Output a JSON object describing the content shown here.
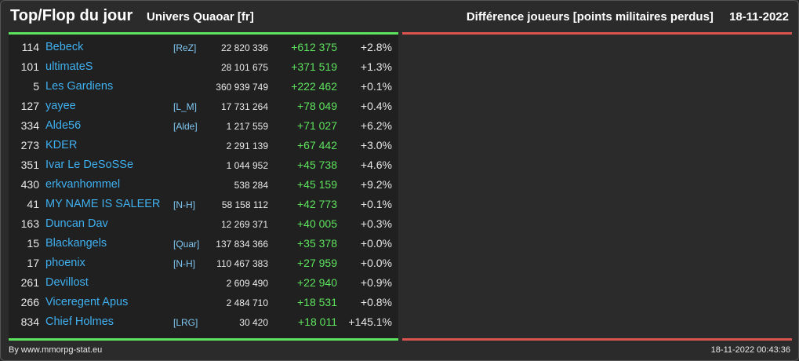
{
  "header": {
    "title": "Top/Flop du jour",
    "universe": "Univers Quaoar [fr]",
    "metric": "Différence joueurs [points militaires perdus]",
    "date": "18-11-2022"
  },
  "rows": [
    {
      "rank": "114",
      "name": "Bebeck",
      "tag": "[ReZ]",
      "points": "22 820 336",
      "diff": "+612 375",
      "pct": "+2.8%"
    },
    {
      "rank": "101",
      "name": "ultimateS",
      "tag": "",
      "points": "28 101 675",
      "diff": "+371 519",
      "pct": "+1.3%"
    },
    {
      "rank": "5",
      "name": "Les Gardiens",
      "tag": "",
      "points": "360 939 749",
      "diff": "+222 462",
      "pct": "+0.1%"
    },
    {
      "rank": "127",
      "name": "yayee",
      "tag": "[L_M]",
      "points": "17 731 264",
      "diff": "+78 049",
      "pct": "+0.4%"
    },
    {
      "rank": "334",
      "name": "Alde56",
      "tag": "[Alde]",
      "points": "1 217 559",
      "diff": "+71 027",
      "pct": "+6.2%"
    },
    {
      "rank": "273",
      "name": "KDER",
      "tag": "",
      "points": "2 291 139",
      "diff": "+67 442",
      "pct": "+3.0%"
    },
    {
      "rank": "351",
      "name": "Ivar Le DeSoSSe",
      "tag": "",
      "points": "1 044 952",
      "diff": "+45 738",
      "pct": "+4.6%"
    },
    {
      "rank": "430",
      "name": "erkvanhommel",
      "tag": "",
      "points": "538 284",
      "diff": "+45 159",
      "pct": "+9.2%"
    },
    {
      "rank": "41",
      "name": "MY NAME IS SALEER",
      "tag": "[N-H]",
      "points": "58 158 112",
      "diff": "+42 773",
      "pct": "+0.1%"
    },
    {
      "rank": "163",
      "name": "Duncan Dav",
      "tag": "",
      "points": "12 269 371",
      "diff": "+40 005",
      "pct": "+0.3%"
    },
    {
      "rank": "15",
      "name": "Blackangels",
      "tag": "[Quar]",
      "points": "137 834 366",
      "diff": "+35 378",
      "pct": "+0.0%"
    },
    {
      "rank": "17",
      "name": "phoenix",
      "tag": "[N-H]",
      "points": "110 467 383",
      "diff": "+27 959",
      "pct": "+0.0%"
    },
    {
      "rank": "261",
      "name": "Devillost",
      "tag": "",
      "points": "2 609 490",
      "diff": "+22 940",
      "pct": "+0.9%"
    },
    {
      "rank": "266",
      "name": "Viceregent Apus",
      "tag": "",
      "points": "2 484 710",
      "diff": "+18 531",
      "pct": "+0.8%"
    },
    {
      "rank": "834",
      "name": "Chief Holmes",
      "tag": "[LRG]",
      "points": "30 420",
      "diff": "+18 011",
      "pct": "+145.1%"
    }
  ],
  "footer": {
    "source": "By www.mmorpg-stat.eu",
    "timestamp": "18-11-2022 00:43:36"
  },
  "colors": {
    "top_accent": "#5ee35e",
    "flop_accent": "#d9544f",
    "link": "#3fb0f0"
  }
}
